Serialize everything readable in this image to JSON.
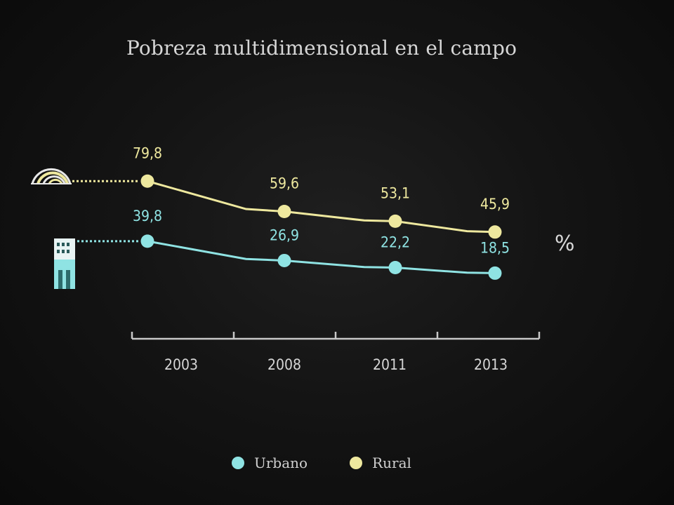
{
  "colors": {
    "background": "#111111",
    "urbano": "#8fe3e3",
    "rural": "#eee89e",
    "axis": "#c8c8c8",
    "text": "#d6d6d6"
  },
  "chart_data": {
    "type": "line",
    "title": "Pobreza multidimensional en el campo",
    "unit": "%",
    "categories": [
      "2003",
      "2008",
      "2011",
      "2013"
    ],
    "series": [
      {
        "name": "Rural",
        "values": [
          79.8,
          59.6,
          53.1,
          45.9
        ],
        "labels": [
          "79,8",
          "59,6",
          "53,1",
          "45,9"
        ],
        "color": "#eee89e",
        "icon": "rural-field-icon"
      },
      {
        "name": "Urbano",
        "values": [
          39.8,
          26.9,
          22.2,
          18.5
        ],
        "labels": [
          "39,8",
          "26,9",
          "22,2",
          "18,5"
        ],
        "color": "#8fe3e3",
        "icon": "building-icon"
      }
    ],
    "legend": [
      {
        "name": "Urbano",
        "color": "#8fe3e3"
      },
      {
        "name": "Rural",
        "color": "#eee89e"
      }
    ],
    "legend_position": "bottom-center",
    "grid": false
  }
}
